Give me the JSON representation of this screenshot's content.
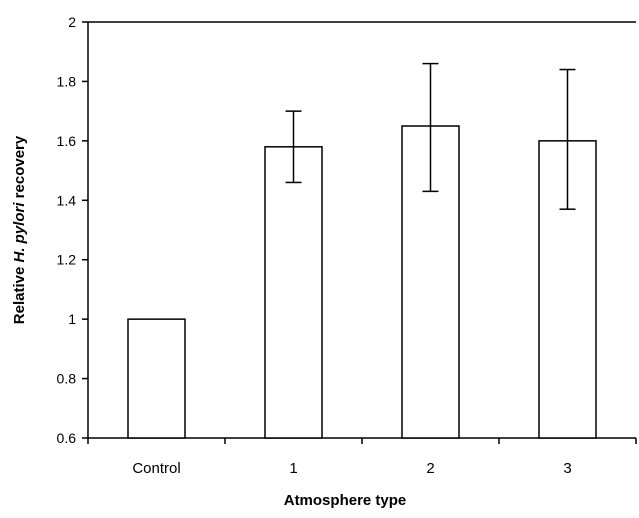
{
  "chart_data": {
    "type": "bar",
    "categories": [
      "Control",
      "1",
      "2",
      "3"
    ],
    "values": [
      1.0,
      1.58,
      1.65,
      1.6
    ],
    "error_upper": [
      1.0,
      1.7,
      1.86,
      1.84
    ],
    "error_lower": [
      1.0,
      1.46,
      1.43,
      1.37
    ],
    "ylim": [
      0.6,
      2.0
    ],
    "yticks": [
      "0.6",
      "0.8",
      "1",
      "1.2",
      "1.4",
      "1.6",
      "1.8",
      "2"
    ],
    "xlabel": "Atmosphere type",
    "ylabel_parts": [
      "Relative ",
      "H. pylori",
      " recovery"
    ],
    "grid": false,
    "legend": "none",
    "colors": {
      "bar_fill": "#ffffff",
      "stroke": "#000000"
    }
  }
}
